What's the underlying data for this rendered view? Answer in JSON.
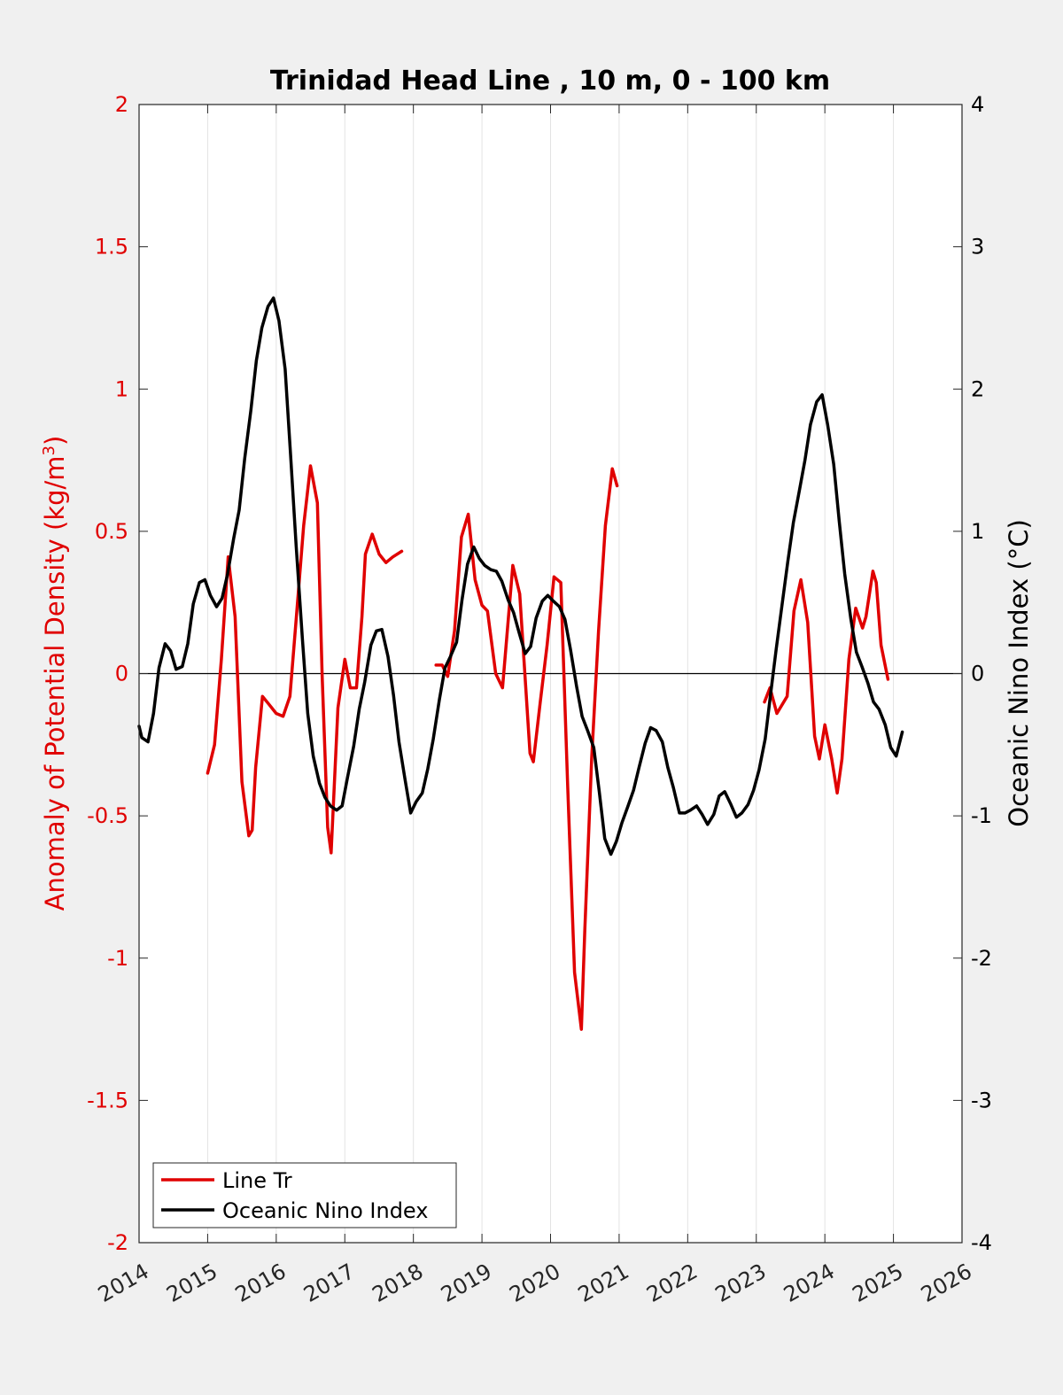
{
  "chart_data": {
    "type": "line",
    "title": "Trinidad Head Line , 10 m, 0 - 100 km",
    "xlabel": "",
    "ylabel_left": "Anomaly of Potential Density (kg/m",
    "ylabel_left_sup": "3",
    "ylabel_left_close": ")",
    "ylabel_right": "Oceanic Nino Index (°C)",
    "xlim": [
      2014,
      2026
    ],
    "ylim_left": [
      -2,
      2
    ],
    "ylim_right": [
      -4,
      4
    ],
    "xticks": [
      2014,
      2015,
      2016,
      2017,
      2018,
      2019,
      2020,
      2021,
      2022,
      2023,
      2024,
      2025,
      2026
    ],
    "xtick_labels": [
      "2014",
      "2015",
      "2016",
      "2017",
      "2018",
      "2019",
      "2020",
      "2021",
      "2022",
      "2023",
      "2024",
      "2025",
      "2026"
    ],
    "yticks_left": [
      -2,
      -1.5,
      -1,
      -0.5,
      0,
      0.5,
      1,
      1.5,
      2
    ],
    "ytick_labels_left": [
      "-2",
      "-1.5",
      "-1",
      "-0.5",
      "0",
      "0.5",
      "1",
      "1.5",
      "2"
    ],
    "yticks_right": [
      -4,
      -3,
      -2,
      -1,
      0,
      1,
      2,
      3,
      4
    ],
    "ytick_labels_right": [
      "-4",
      "-3",
      "-2",
      "-1",
      "0",
      "1",
      "2",
      "3",
      "4"
    ],
    "grid": "vertical",
    "legend_position": "bottom-left",
    "series": [
      {
        "name": "Line Tr",
        "axis": "left",
        "color": "#e00000",
        "segments": [
          {
            "x": [
              2015.0,
              2015.1,
              2015.2,
              2015.3,
              2015.4,
              2015.5,
              2015.6,
              2015.65,
              2015.7,
              2015.8,
              2015.9,
              2016.0,
              2016.1,
              2016.2,
              2016.3,
              2016.4,
              2016.5,
              2016.6,
              2016.67,
              2016.75,
              2016.8,
              2016.9,
              2017.0,
              2017.08,
              2017.17,
              2017.25,
              2017.3,
              2017.4,
              2017.5,
              2017.6,
              2017.7,
              2017.83
            ],
            "y": [
              -0.35,
              -0.25,
              0.05,
              0.41,
              0.2,
              -0.38,
              -0.57,
              -0.55,
              -0.33,
              -0.08,
              -0.11,
              -0.14,
              -0.15,
              -0.08,
              0.22,
              0.52,
              0.73,
              0.6,
              -0.01,
              -0.54,
              -0.63,
              -0.12,
              0.05,
              -0.05,
              -0.05,
              0.2,
              0.42,
              0.49,
              0.42,
              0.39,
              0.41,
              0.43
            ]
          },
          {
            "x": [
              2018.33,
              2018.42,
              2018.5,
              2018.6,
              2018.7,
              2018.8,
              2018.9,
              2019.0,
              2019.08,
              2019.2,
              2019.3,
              2019.45,
              2019.55,
              2019.7,
              2019.75,
              2019.85,
              2019.95,
              2020.05,
              2020.15,
              2020.25,
              2020.35,
              2020.45,
              2020.5,
              2020.6,
              2020.7,
              2020.8,
              2020.9,
              2020.97
            ],
            "y": [
              0.03,
              0.03,
              -0.01,
              0.15,
              0.48,
              0.56,
              0.33,
              0.24,
              0.22,
              0.0,
              -0.05,
              0.38,
              0.28,
              -0.28,
              -0.31,
              -0.1,
              0.1,
              0.34,
              0.32,
              -0.4,
              -1.05,
              -1.25,
              -0.9,
              -0.3,
              0.15,
              0.52,
              0.72,
              0.66
            ]
          },
          {
            "x": [
              2023.12,
              2023.2,
              2023.3,
              2023.45,
              2023.55,
              2023.65,
              2023.75,
              2023.85,
              2023.92,
              2024.0,
              2024.1,
              2024.18,
              2024.25,
              2024.35,
              2024.45,
              2024.55,
              2024.6,
              2024.7,
              2024.75,
              2024.82,
              2024.92
            ],
            "y": [
              -0.1,
              -0.05,
              -0.14,
              -0.08,
              0.22,
              0.33,
              0.18,
              -0.22,
              -0.3,
              -0.18,
              -0.3,
              -0.42,
              -0.3,
              0.05,
              0.23,
              0.16,
              0.2,
              0.36,
              0.32,
              0.1,
              -0.02
            ]
          }
        ]
      },
      {
        "name": "Oceanic Nino Index",
        "axis": "right",
        "color": "#000000",
        "segments": [
          {
            "x": [
              2014.0,
              2014.04,
              2014.13,
              2014.21,
              2014.29,
              2014.38,
              2014.46,
              2014.54,
              2014.63,
              2014.71,
              2014.79,
              2014.88,
              2014.96,
              2015.04,
              2015.13,
              2015.21,
              2015.29,
              2015.38,
              2015.46,
              2015.54,
              2015.63,
              2015.71,
              2015.79,
              2015.88,
              2015.96,
              2016.04,
              2016.13,
              2016.21,
              2016.29,
              2016.38,
              2016.46,
              2016.54,
              2016.63,
              2016.71,
              2016.79,
              2016.88,
              2016.96,
              2017.04,
              2017.13,
              2017.21,
              2017.29,
              2017.38,
              2017.46,
              2017.54,
              2017.63,
              2017.71,
              2017.79,
              2017.88,
              2017.96,
              2018.04,
              2018.13,
              2018.21,
              2018.29,
              2018.38,
              2018.46,
              2018.54,
              2018.63,
              2018.71,
              2018.79,
              2018.88,
              2018.96,
              2019.04,
              2019.13,
              2019.21,
              2019.29,
              2019.38,
              2019.46,
              2019.54,
              2019.63,
              2019.71,
              2019.79,
              2019.88,
              2019.96,
              2020.04,
              2020.13,
              2020.21,
              2020.29,
              2020.38,
              2020.46,
              2020.54,
              2020.63,
              2020.71,
              2020.79,
              2020.88,
              2020.96,
              2021.04,
              2021.13,
              2021.21,
              2021.29,
              2021.38,
              2021.46,
              2021.54,
              2021.63,
              2021.71,
              2021.79,
              2021.88,
              2021.96,
              2022.04,
              2022.13,
              2022.21,
              2022.29,
              2022.38,
              2022.46,
              2022.54,
              2022.63,
              2022.71,
              2022.79,
              2022.88,
              2022.96,
              2023.04,
              2023.13,
              2023.21,
              2023.29,
              2023.38,
              2023.46,
              2023.54,
              2023.63,
              2023.71,
              2023.79,
              2023.88,
              2023.96,
              2024.04,
              2024.13,
              2024.21,
              2024.29,
              2024.38,
              2024.46,
              2024.54,
              2024.63,
              2024.71,
              2024.79,
              2024.88,
              2024.96,
              2025.04,
              2025.13
            ],
            "y": [
              -0.37,
              -0.45,
              -0.48,
              -0.28,
              0.04,
              0.21,
              0.16,
              0.03,
              0.05,
              0.21,
              0.49,
              0.64,
              0.66,
              0.55,
              0.47,
              0.53,
              0.7,
              0.95,
              1.15,
              1.51,
              1.85,
              2.2,
              2.43,
              2.58,
              2.64,
              2.48,
              2.14,
              1.53,
              0.9,
              0.25,
              -0.28,
              -0.58,
              -0.77,
              -0.87,
              -0.93,
              -0.96,
              -0.93,
              -0.73,
              -0.51,
              -0.25,
              -0.06,
              0.2,
              0.3,
              0.31,
              0.12,
              -0.15,
              -0.48,
              -0.75,
              -0.98,
              -0.9,
              -0.84,
              -0.67,
              -0.46,
              -0.18,
              0.04,
              0.12,
              0.22,
              0.52,
              0.77,
              0.89,
              0.81,
              0.76,
              0.73,
              0.72,
              0.65,
              0.52,
              0.43,
              0.29,
              0.14,
              0.19,
              0.39,
              0.51,
              0.55,
              0.51,
              0.47,
              0.38,
              0.17,
              -0.09,
              -0.3,
              -0.4,
              -0.52,
              -0.83,
              -1.16,
              -1.27,
              -1.18,
              -1.05,
              -0.93,
              -0.82,
              -0.66,
              -0.49,
              -0.38,
              -0.4,
              -0.48,
              -0.66,
              -0.8,
              -0.98,
              -0.98,
              -0.96,
              -0.93,
              -0.99,
              -1.06,
              -0.99,
              -0.86,
              -0.83,
              -0.92,
              -1.01,
              -0.98,
              -0.92,
              -0.82,
              -0.68,
              -0.46,
              -0.14,
              0.17,
              0.5,
              0.79,
              1.06,
              1.29,
              1.5,
              1.75,
              1.91,
              1.96,
              1.75,
              1.47,
              1.07,
              0.7,
              0.38,
              0.15,
              0.05,
              -0.07,
              -0.2,
              -0.25,
              -0.36,
              -0.52,
              -0.58,
              -0.41
            ]
          }
        ]
      }
    ]
  },
  "legend": {
    "entries": [
      "Line Tr",
      "Oceanic Nino Index"
    ]
  }
}
